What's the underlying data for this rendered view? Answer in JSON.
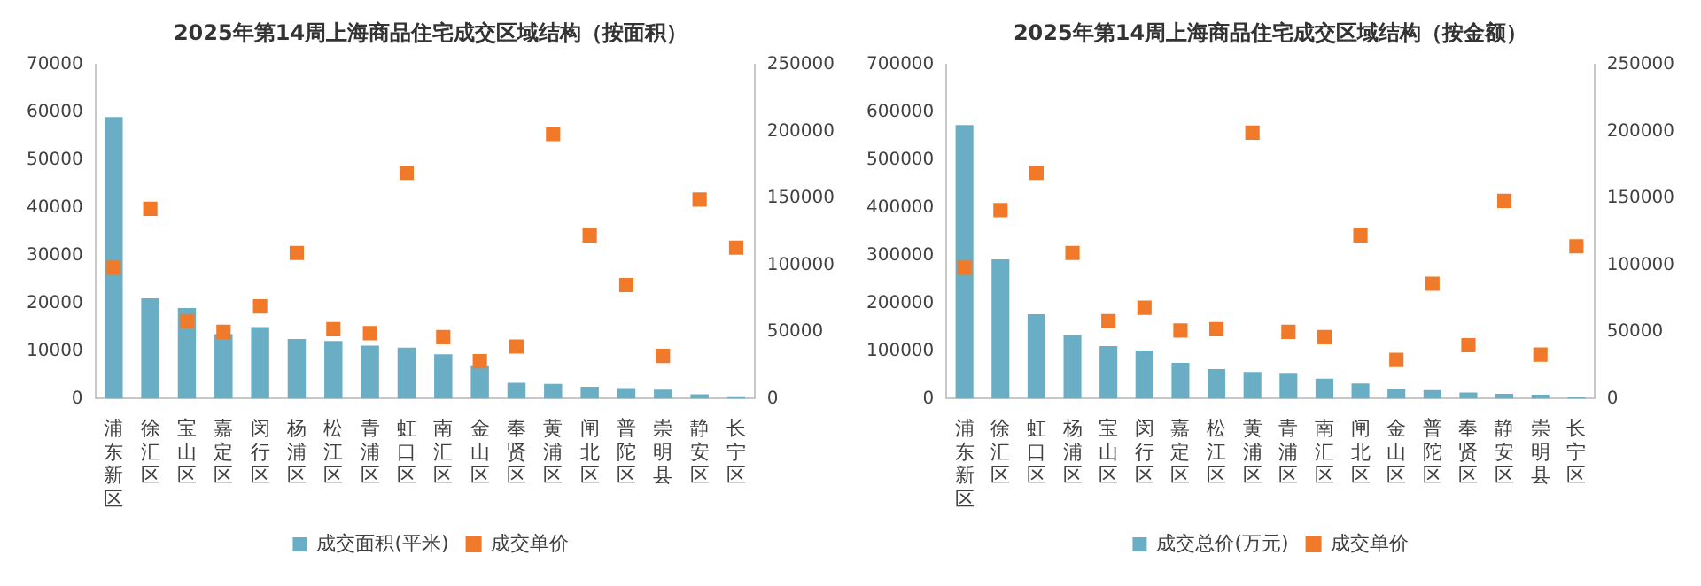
{
  "chart_data": [
    {
      "type": "bar",
      "title": "2025年第14周上海商品住宅成交区域结构（按面积）",
      "categories": [
        "浦东新区",
        "徐汇区",
        "宝山区",
        "嘉定区",
        "闵行区",
        "杨浦区",
        "松江区",
        "青浦区",
        "虹口区",
        "南汇区",
        "金山区",
        "奉贤区",
        "黄浦区",
        "闸北区",
        "普陀区",
        "崇明县",
        "静安区",
        "长宁区"
      ],
      "series": [
        {
          "name": "成交面积(平米)",
          "color": "#6aaec6",
          "values": [
            59000,
            21000,
            19000,
            13500,
            15000,
            12500,
            12100,
            11100,
            10700,
            9300,
            7000,
            3300,
            3100,
            2500,
            2200,
            1900,
            900,
            500
          ]
        },
        {
          "name": "成交单价",
          "type": "scatter",
          "axis": "y2",
          "color": "#f07a2a",
          "values": [
            98000,
            142000,
            58000,
            50000,
            69000,
            109000,
            52000,
            49000,
            169000,
            46000,
            28000,
            39000,
            198000,
            122000,
            85000,
            32000,
            149000,
            113000
          ]
        }
      ],
      "ylim": [
        0,
        70000
      ],
      "yticks": [
        0,
        10000,
        20000,
        30000,
        40000,
        50000,
        60000,
        70000
      ],
      "y2lim": [
        0,
        250000
      ],
      "y2ticks": [
        0,
        50000,
        100000,
        150000,
        200000,
        250000
      ],
      "grid": false,
      "legend": "bottom",
      "marker": "square"
    },
    {
      "type": "bar",
      "title": "2025年第14周上海商品住宅成交区域结构（按金额）",
      "categories": [
        "浦东新区",
        "徐汇区",
        "虹口区",
        "杨浦区",
        "宝山区",
        "闵行区",
        "嘉定区",
        "松江区",
        "黄浦区",
        "青浦区",
        "南汇区",
        "闸北区",
        "金山区",
        "普陀区",
        "奉贤区",
        "静安区",
        "崇明县",
        "长宁区"
      ],
      "series": [
        {
          "name": "成交总价(万元)",
          "color": "#6aaec6",
          "values": [
            573000,
            292000,
            177000,
            133000,
            110000,
            101000,
            75000,
            62000,
            56000,
            54000,
            42000,
            32000,
            20000,
            18000,
            13000,
            10000,
            8000,
            4000
          ]
        },
        {
          "name": "成交单价",
          "type": "scatter",
          "axis": "y2",
          "color": "#f07a2a",
          "values": [
            98000,
            141000,
            169000,
            109000,
            58000,
            68000,
            51000,
            52000,
            199000,
            50000,
            46000,
            122000,
            29000,
            86000,
            40000,
            148000,
            33000,
            114000
          ]
        }
      ],
      "ylim": [
        0,
        700000
      ],
      "yticks": [
        0,
        100000,
        200000,
        300000,
        400000,
        500000,
        600000,
        700000
      ],
      "y2lim": [
        0,
        250000
      ],
      "y2ticks": [
        0,
        50000,
        100000,
        150000,
        200000,
        250000
      ],
      "grid": false,
      "legend": "bottom",
      "marker": "square"
    }
  ]
}
